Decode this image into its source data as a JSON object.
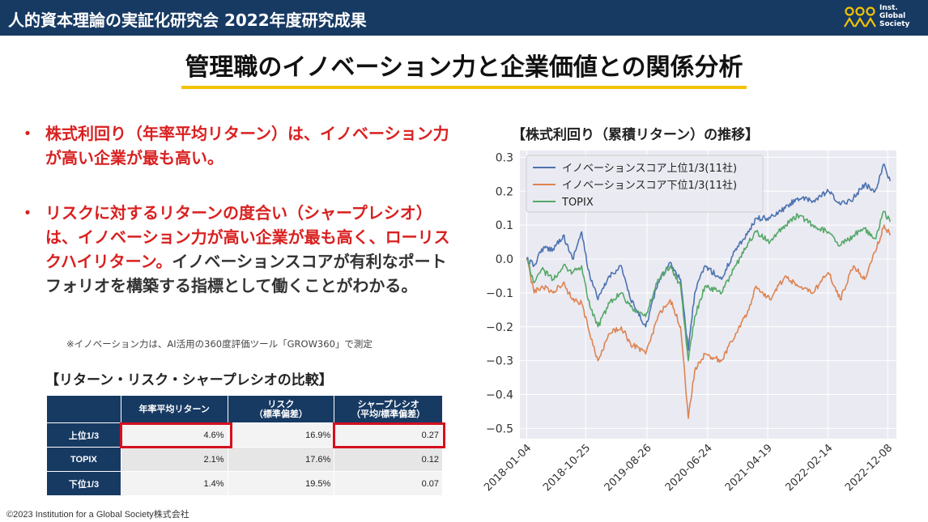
{
  "header": {
    "title": "人的資本理論の実証化研究会 2022年度研究成果",
    "logo_lines": [
      "Inst.",
      "Global",
      "Society"
    ],
    "logo_icon": "three-figures-icon"
  },
  "main_title": "管理職のイノベーション力と企業価値との関係分析",
  "bullets": [
    {
      "marker": "・",
      "red_text": "株式利回り（年率平均リターン）は、イノベーション力が高い企業が最も高い。",
      "dark_text": ""
    },
    {
      "marker": "・",
      "red_text": "リスクに対するリターンの度合い（シャープレシオ）は、イノベーション力が高い企業が最も高く、ローリスクハイリターン。",
      "dark_text": "イノベーションスコアが有利なポートフォリオを構築する指標として働くことがわかる。"
    }
  ],
  "note": "※イノベーション力は、AI活用の360度評価ツール「GROW360」で測定",
  "table": {
    "title": "【リターン・リスク・シャープレシオの比較】",
    "headers": {
      "return": "年率平均リターン",
      "risk_1": "リスク",
      "risk_2": "（標準偏差）",
      "sharpe_1": "シャープレシオ",
      "sharpe_2": "（平均/標準偏差）"
    },
    "rows": [
      {
        "label": "上位1/3",
        "return": "4.6%",
        "risk": "16.9%",
        "sharpe": "0.27"
      },
      {
        "label": "TOPIX",
        "return": "2.1%",
        "risk": "17.6%",
        "sharpe": "0.12"
      },
      {
        "label": "下位1/3",
        "return": "1.4%",
        "risk": "19.5%",
        "sharpe": "0.07"
      }
    ]
  },
  "copyright": "©2023  Institution for a Global Society株式会社",
  "colors": {
    "navy": "#173a63",
    "accent_red": "#d92020",
    "highlight_red": "#d50f1f",
    "underline_yellow": "#f2c200"
  },
  "chart_data": {
    "type": "line",
    "title": "【株式利回り（累積リターン）の推移】",
    "xlabel": "",
    "ylabel": "",
    "ylim": [
      -0.53,
      0.32
    ],
    "yticks": [
      -0.5,
      -0.4,
      -0.3,
      -0.2,
      -0.1,
      0.0,
      0.1,
      0.2,
      0.3
    ],
    "ytick_labels": [
      "−0.5",
      "−0.4",
      "−0.3",
      "−0.2",
      "−0.1",
      "0.0",
      "0.1",
      "0.2",
      "0.3"
    ],
    "xlim": [
      "2017-12-01",
      "2023-01-20"
    ],
    "xticks": [
      "2018-01-04",
      "2018-10-25",
      "2019-08-26",
      "2020-06-24",
      "2021-04-19",
      "2022-02-14",
      "2022-12-08"
    ],
    "grid": true,
    "legend_position": "top-left",
    "series": [
      {
        "name": "イノベーションスコア上位1/3(11社)",
        "color": "#4c72b0",
        "x": [
          "2018-01-04",
          "2018-02-10",
          "2018-03-20",
          "2018-05-15",
          "2018-07-05",
          "2018-08-20",
          "2018-10-05",
          "2018-11-05",
          "2018-12-25",
          "2019-02-20",
          "2019-04-20",
          "2019-06-05",
          "2019-08-20",
          "2019-10-20",
          "2019-12-20",
          "2020-02-10",
          "2020-03-19",
          "2020-04-20",
          "2020-06-10",
          "2020-09-01",
          "2020-11-10",
          "2021-01-15",
          "2021-02-20",
          "2021-04-30",
          "2021-07-15",
          "2021-09-15",
          "2021-11-30",
          "2022-02-15",
          "2022-04-15",
          "2022-06-20",
          "2022-08-15",
          "2022-10-05",
          "2022-11-20",
          "2022-12-20"
        ],
        "values": [
          0.0,
          -0.02,
          0.03,
          0.03,
          0.07,
          0.0,
          0.08,
          -0.03,
          -0.12,
          -0.05,
          -0.02,
          -0.12,
          -0.2,
          -0.07,
          -0.01,
          -0.06,
          -0.27,
          -0.1,
          -0.02,
          -0.06,
          0.03,
          0.08,
          0.12,
          0.12,
          0.15,
          0.18,
          0.17,
          0.2,
          0.16,
          0.18,
          0.22,
          0.2,
          0.28,
          0.23
        ]
      },
      {
        "name": "イノベーションスコア下位1/3(11社)",
        "color": "#dd8452",
        "x": [
          "2018-01-04",
          "2018-02-10",
          "2018-03-20",
          "2018-05-15",
          "2018-07-05",
          "2018-08-20",
          "2018-10-05",
          "2018-11-05",
          "2018-12-25",
          "2019-02-20",
          "2019-04-20",
          "2019-06-05",
          "2019-08-20",
          "2019-10-20",
          "2019-12-20",
          "2020-02-10",
          "2020-03-19",
          "2020-04-20",
          "2020-06-10",
          "2020-09-01",
          "2020-11-10",
          "2021-01-15",
          "2021-02-20",
          "2021-04-30",
          "2021-07-15",
          "2021-09-15",
          "2021-11-30",
          "2022-02-15",
          "2022-04-15",
          "2022-06-20",
          "2022-08-15",
          "2022-10-05",
          "2022-11-20",
          "2022-12-20"
        ],
        "values": [
          0.0,
          -0.1,
          -0.08,
          -0.1,
          -0.07,
          -0.12,
          -0.13,
          -0.2,
          -0.3,
          -0.22,
          -0.2,
          -0.25,
          -0.28,
          -0.17,
          -0.12,
          -0.2,
          -0.47,
          -0.33,
          -0.28,
          -0.3,
          -0.22,
          -0.15,
          -0.08,
          -0.12,
          -0.05,
          -0.08,
          -0.1,
          -0.04,
          -0.12,
          -0.02,
          -0.06,
          0.02,
          0.1,
          0.07
        ]
      },
      {
        "name": "TOPIX",
        "color": "#55a868",
        "x": [
          "2018-01-04",
          "2018-02-10",
          "2018-03-20",
          "2018-05-15",
          "2018-07-05",
          "2018-08-20",
          "2018-10-05",
          "2018-11-05",
          "2018-12-25",
          "2019-02-20",
          "2019-04-20",
          "2019-06-05",
          "2019-08-20",
          "2019-10-20",
          "2019-12-20",
          "2020-02-10",
          "2020-03-19",
          "2020-04-20",
          "2020-06-10",
          "2020-09-01",
          "2020-11-10",
          "2021-01-15",
          "2021-02-20",
          "2021-04-30",
          "2021-07-15",
          "2021-09-15",
          "2021-11-30",
          "2022-02-15",
          "2022-04-15",
          "2022-06-20",
          "2022-08-15",
          "2022-10-05",
          "2022-11-20",
          "2022-12-20"
        ],
        "values": [
          0.0,
          -0.07,
          -0.03,
          -0.06,
          -0.02,
          -0.04,
          -0.02,
          -0.12,
          -0.2,
          -0.13,
          -0.1,
          -0.14,
          -0.17,
          -0.06,
          -0.02,
          -0.08,
          -0.3,
          -0.17,
          -0.08,
          -0.1,
          -0.02,
          0.05,
          0.08,
          0.05,
          0.1,
          0.13,
          0.1,
          0.08,
          0.04,
          0.07,
          0.09,
          0.06,
          0.14,
          0.11
        ]
      }
    ]
  }
}
